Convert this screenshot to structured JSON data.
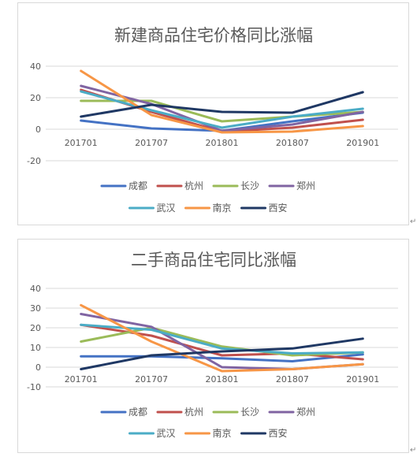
{
  "chart_data": [
    {
      "type": "line",
      "title": "新建商品住宅价格同比涨幅",
      "xlabel": "",
      "ylabel": "",
      "categories": [
        "201701",
        "201707",
        "201801",
        "201807",
        "201901"
      ],
      "yticks": [
        -20,
        0,
        20,
        40
      ],
      "ylim": [
        -20,
        40
      ],
      "grid": true,
      "legend": "bottom",
      "series": [
        {
          "name": "成都",
          "color": "#4472c4",
          "values": [
            5.5,
            0.5,
            -1,
            5,
            10.5
          ]
        },
        {
          "name": "杭州",
          "color": "#c0504d",
          "values": [
            25,
            11,
            -1.5,
            1,
            6
          ]
        },
        {
          "name": "长沙",
          "color": "#9bbb59",
          "values": [
            18,
            18,
            5,
            8,
            11
          ]
        },
        {
          "name": "郑州",
          "color": "#8064a2",
          "values": [
            27.5,
            16,
            -1,
            3,
            11
          ]
        },
        {
          "name": "武汉",
          "color": "#4bacc6",
          "values": [
            24,
            12,
            1,
            8,
            13
          ]
        },
        {
          "name": "南京",
          "color": "#f79646",
          "values": [
            37,
            9,
            -2,
            -1.5,
            2
          ]
        },
        {
          "name": "西安",
          "color": "#1f3864",
          "values": [
            8,
            15.5,
            11,
            10.5,
            23.5
          ]
        }
      ]
    },
    {
      "type": "line",
      "title": "二手商品住宅同比涨幅",
      "xlabel": "",
      "ylabel": "",
      "categories": [
        "201701",
        "201707",
        "201801",
        "201807",
        "201901"
      ],
      "yticks": [
        -10,
        0,
        10,
        20,
        30,
        40
      ],
      "ylim": [
        -10,
        40
      ],
      "grid": true,
      "legend": "bottom",
      "series": [
        {
          "name": "成都",
          "color": "#4472c4",
          "values": [
            5.5,
            5.5,
            4.5,
            3,
            6.5
          ]
        },
        {
          "name": "杭州",
          "color": "#c0504d",
          "values": [
            21.5,
            16,
            6,
            7,
            4
          ]
        },
        {
          "name": "长沙",
          "color": "#9bbb59",
          "values": [
            13,
            20,
            10.5,
            6,
            7.5
          ]
        },
        {
          "name": "郑州",
          "color": "#8064a2",
          "values": [
            27,
            20.5,
            0,
            -1,
            1.5
          ]
        },
        {
          "name": "武汉",
          "color": "#4bacc6",
          "values": [
            21.5,
            19,
            9.5,
            7,
            7.5
          ]
        },
        {
          "name": "南京",
          "color": "#f79646",
          "values": [
            31.5,
            13,
            -2,
            -1,
            1.5
          ]
        },
        {
          "name": "西安",
          "color": "#1f3864",
          "values": [
            -1,
            6,
            8,
            9.5,
            14.5
          ]
        }
      ]
    }
  ]
}
